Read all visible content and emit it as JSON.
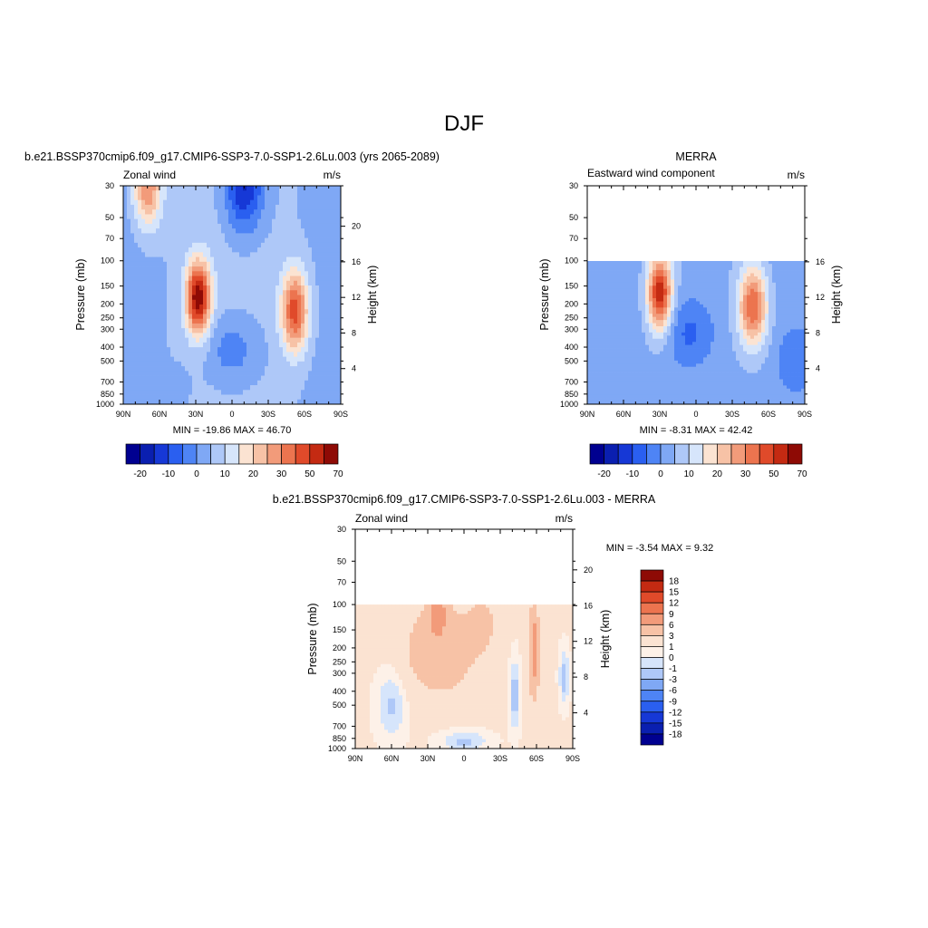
{
  "main_title": "DJF",
  "chart_data": [
    {
      "type": "heatmap",
      "title": "b.e21.BSSP370cmip6.f09_g17.CMIP6-SSP3-7.0-SSP1-2.6Lu.003 (yrs 2065-2089)",
      "left_label": "Zonal wind",
      "right_label": "m/s",
      "xlabel": "",
      "ylabel": "Pressure (mb)",
      "y2label": "Height (km)",
      "x_ticks": [
        "90N",
        "60N",
        "30N",
        "0",
        "30S",
        "60S",
        "90S"
      ],
      "y_ticks": [
        "30",
        "50",
        "70",
        "100",
        "150",
        "200",
        "250",
        "300",
        "400",
        "500",
        "700",
        "850",
        "1000"
      ],
      "y2_ticks": [
        "20",
        "16",
        "12",
        "8",
        "4"
      ],
      "ylim": [
        1000,
        30
      ],
      "stats": "MIN = -19.86  MAX =  46.70",
      "colorbar": {
        "labels": [
          "-20",
          "-10",
          "0",
          "10",
          "20",
          "30",
          "50",
          "70"
        ],
        "colors": [
          "#000090",
          "#0a1fb0",
          "#1638d6",
          "#2a5ff0",
          "#4e84f5",
          "#7fa8f5",
          "#aec8f8",
          "#d6e5fb",
          "#fbe3d2",
          "#f7c2a6",
          "#f29b7a",
          "#ec744f",
          "#e04a2a",
          "#c42a12",
          "#8e0a05"
        ]
      },
      "jets": [
        {
          "lat": 28,
          "p": 180,
          "peak": 46.7
        },
        {
          "lat": -52,
          "p": 230,
          "peak": 35
        },
        {
          "lat": 68,
          "p": 30,
          "peak": 28
        },
        {
          "lat": -10,
          "p": 30,
          "peak": -19.86
        }
      ]
    },
    {
      "type": "heatmap",
      "title": "MERRA",
      "left_label": "Eastward wind component",
      "right_label": "m/s",
      "xlabel": "",
      "ylabel": "Pressure (mb)",
      "y2label": "Height (km)",
      "x_ticks": [
        "90N",
        "60N",
        "30N",
        "0",
        "30S",
        "60S",
        "90S"
      ],
      "y_ticks": [
        "30",
        "50",
        "70",
        "100",
        "150",
        "200",
        "250",
        "300",
        "400",
        "500",
        "700",
        "850",
        "1000"
      ],
      "y2_ticks": [
        "16",
        "12",
        "8",
        "4"
      ],
      "ylim": [
        1000,
        30
      ],
      "data_top_p": 100,
      "stats": "MIN =  -8.31  MAX =  42.42",
      "colorbar": {
        "labels": [
          "-20",
          "-10",
          "0",
          "10",
          "20",
          "30",
          "50",
          "70"
        ],
        "colors": [
          "#000090",
          "#0a1fb0",
          "#1638d6",
          "#2a5ff0",
          "#4e84f5",
          "#7fa8f5",
          "#aec8f8",
          "#d6e5fb",
          "#fbe3d2",
          "#f7c2a6",
          "#f29b7a",
          "#ec744f",
          "#e04a2a",
          "#c42a12",
          "#8e0a05"
        ]
      },
      "jets": [
        {
          "lat": 30,
          "p": 180,
          "peak": 42.42
        },
        {
          "lat": -47,
          "p": 200,
          "peak": 34
        },
        {
          "lat": 5,
          "p": 350,
          "peak": -8.31
        }
      ]
    },
    {
      "type": "heatmap",
      "title": "b.e21.BSSP370cmip6.f09_g17.CMIP6-SSP3-7.0-SSP1-2.6Lu.003 - MERRA",
      "left_label": "Zonal wind",
      "right_label": "m/s",
      "xlabel": "",
      "ylabel": "Pressure (mb)",
      "y2label": "Height (km)",
      "x_ticks": [
        "90N",
        "60N",
        "30N",
        "0",
        "30S",
        "60S",
        "90S"
      ],
      "y_ticks": [
        "30",
        "50",
        "70",
        "100",
        "150",
        "200",
        "250",
        "300",
        "400",
        "500",
        "700",
        "850",
        "1000"
      ],
      "y2_ticks": [
        "20",
        "16",
        "12",
        "8",
        "4"
      ],
      "ylim": [
        1000,
        30
      ],
      "data_top_p": 100,
      "stats": "MIN =  -3.54  MAX =   9.32",
      "colorbar": {
        "labels": [
          "18",
          "15",
          "12",
          "9",
          "6",
          "3",
          "1",
          "0",
          "-1",
          "-3",
          "-6",
          "-9",
          "-12",
          "-15",
          "-18"
        ],
        "colors": [
          "#8e0a05",
          "#c42a12",
          "#e04a2a",
          "#ec744f",
          "#f29b7a",
          "#f7c2a6",
          "#fbe3d2",
          "#fdf1e8",
          "#d6e5fb",
          "#aec8f8",
          "#7fa8f5",
          "#4e84f5",
          "#2a5ff0",
          "#1638d6",
          "#0a1fb0",
          "#000090"
        ]
      }
    }
  ]
}
